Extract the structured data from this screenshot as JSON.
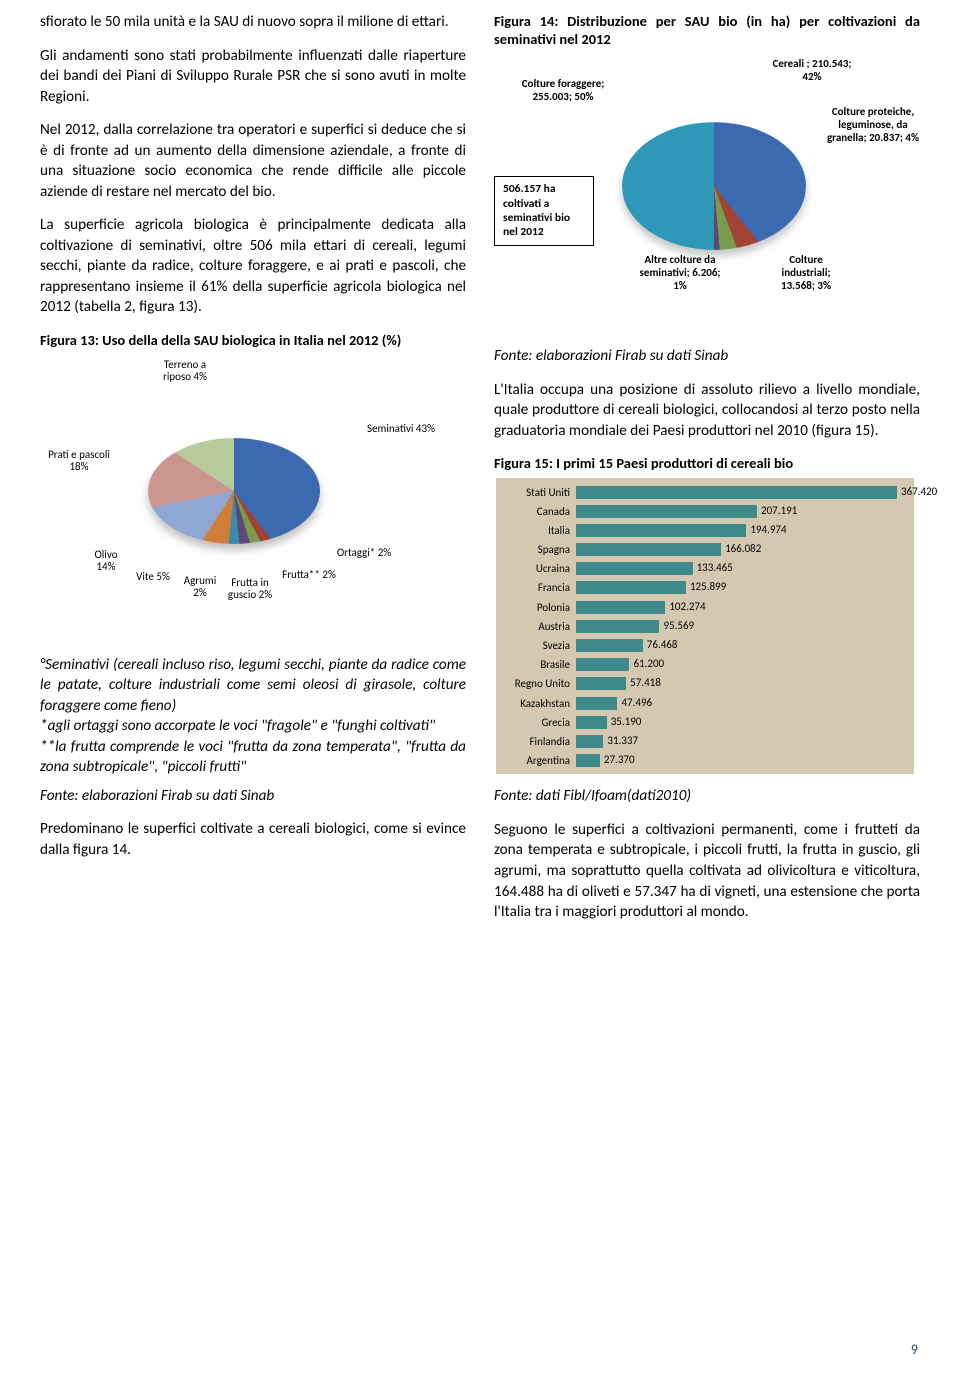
{
  "left": {
    "p1": "sfiorato le 50 mila unità e la SAU di nuovo sopra il milione di ettari.",
    "p2": "Gli andamenti sono stati probabilmente influenzati dalle riaperture dei bandi dei Piani di Sviluppo Rurale PSR che si sono avuti in molte Regioni.",
    "p3": "Nel 2012, dalla correlazione tra operatori e superfici si deduce che si è di fronte ad un aumento della dimensione aziendale, a fronte di una situazione socio economica che rende difficile alle piccole aziende di restare nel mercato del bio.",
    "p4": "La superficie agricola biologica è principalmente dedicata alla coltivazione di seminativi, oltre 506 mila ettari di cereali, legumi secchi, piante da radice, colture foraggere, e ai prati e pascoli, che rappresentano insieme il 61% della superficie agricola biologica nel 2012 (tabella 2, figura 13).",
    "fig13_title": "Figura 13: Uso della della SAU biologica in Italia nel 2012 (%)",
    "note": "°Seminativi (cereali incluso riso, legumi secchi, piante da radice come le patate, colture industriali come semi oleosi di girasole, colture foraggere come fieno)\n*agli ortaggi sono accorpate le voci \"fragole\" e \"funghi coltivati\"\n**la frutta comprende le voci \"frutta da zona temperata\", \"frutta da zona subtropicale\", \"piccoli frutti\"",
    "source": "Fonte: elaborazioni Firab su dati Sinab",
    "p5": "Predominano le superfici coltivate a cereali biologici, come si evince dalla figura 14."
  },
  "right": {
    "fig14_title": "Figura 14: Distribuzione per SAU bio (in ha) per coltivazioni da seminativi nel 2012",
    "fig14_callout": "506.157 ha coltivati a seminativi bio nel 2012",
    "fig14_source": "Fonte: elaborazioni Firab su dati Sinab",
    "p1": "L'Italia occupa una posizione di assoluto rilievo a livello mondiale, quale produttore di cereali biologici, collocandosi al terzo posto nella graduatoria mondiale dei Paesi produttori nel 2010 (figura 15).",
    "fig15_title": "Figura 15: I primi 15 Paesi produttori di cereali bio",
    "fig15_source": "Fonte: dati Fibl/Ifoam(dati2010)",
    "p2": "Seguono le superfici a coltivazioni permanenti, come i frutteti da zona temperata e subtropicale, i piccoli frutti, la frutta in guscio, gli agrumi, ma soprattutto quella coltivata ad olivicoltura e viticoltura, 164.488 ha di oliveti e 57.347 ha di vigneti, una estensione che porta l'Italia tra i maggiori produttori al mondo."
  },
  "pie1": {
    "type": "pie",
    "colors": {
      "seminativi": "#3b6ab0",
      "ortaggi": "#a14235",
      "frutta": "#7a9a4c",
      "fruttaguscio": "#5a497a",
      "agrumi": "#3d8bab",
      "vite": "#cf7f3a",
      "olivo": "#8fa7d2",
      "prati": "#c99690",
      "terreno": "#b7cb9d"
    },
    "labels": {
      "terreno": "Terreno a riposo 4%",
      "seminativi": "Seminativi 43%",
      "prati": "Prati e pascoli 18%",
      "olivo": "Olivo 14%",
      "vite": "Vite 5%",
      "agrumi": "Agrumi 2%",
      "fruttaguscio": "Frutta in guscio 2%",
      "frutta": "Frutta** 2%",
      "ortaggi": "Ortaggi* 2%"
    }
  },
  "pie2": {
    "type": "pie",
    "colors": {
      "foraggere": "#2f98b9",
      "cereali": "#3b6ab0",
      "proteiche": "#a14235",
      "industriali": "#7a9a4c",
      "altre": "#5a497a"
    },
    "labels": {
      "foraggere": "Colture foraggere; 255.003; 50%",
      "cereali": "Cereali ; 210.543; 42%",
      "proteiche": "Colture proteiche, leguminose, da granella; 20.837; 4%",
      "industriali": "Colture industriali; 13.568; 3%",
      "altre": "Altre colture da seminativi; 6.206; 1%"
    }
  },
  "bars": {
    "type": "bar",
    "max": 380000,
    "color": "#3f8a8b",
    "bg": "#d4c9b0",
    "rows": [
      {
        "label": "Stati Uniti",
        "value": 367420,
        "text": "367.420"
      },
      {
        "label": "Canada",
        "value": 207191,
        "text": "207.191"
      },
      {
        "label": "Italia",
        "value": 194974,
        "text": "194.974"
      },
      {
        "label": "Spagna",
        "value": 166082,
        "text": "166.082"
      },
      {
        "label": "Ucraina",
        "value": 133465,
        "text": "133.465"
      },
      {
        "label": "Francia",
        "value": 125899,
        "text": "125.899"
      },
      {
        "label": "Polonia",
        "value": 102274,
        "text": "102.274"
      },
      {
        "label": "Austria",
        "value": 95569,
        "text": "95.569"
      },
      {
        "label": "Svezia",
        "value": 76468,
        "text": "76.468"
      },
      {
        "label": "Brasile",
        "value": 61200,
        "text": "61.200"
      },
      {
        "label": "Regno Unito",
        "value": 57418,
        "text": "57.418"
      },
      {
        "label": "Kazakhstan",
        "value": 47496,
        "text": "47.496"
      },
      {
        "label": "Grecia",
        "value": 35190,
        "text": "35.190"
      },
      {
        "label": "Finlandia",
        "value": 31337,
        "text": "31.337"
      },
      {
        "label": "Argentina",
        "value": 27370,
        "text": "27.370"
      }
    ]
  },
  "pagenum": "9"
}
